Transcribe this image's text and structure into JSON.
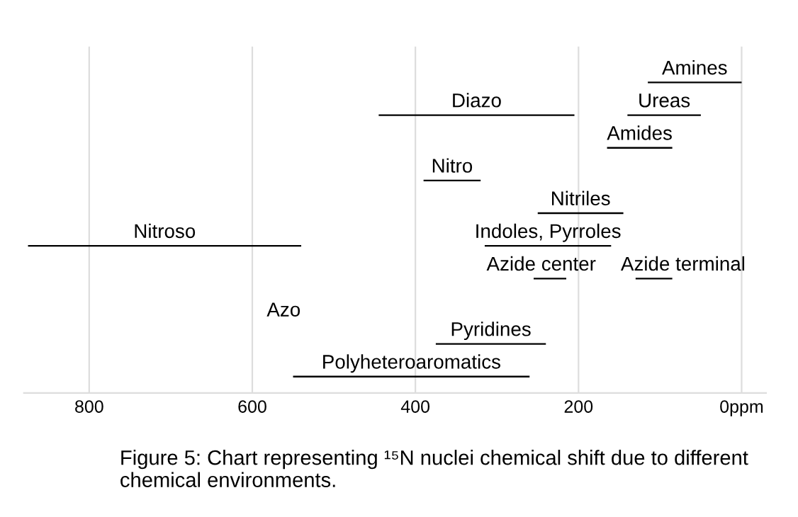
{
  "chart_data": {
    "type": "bar",
    "orientation": "horizontal",
    "categories": [
      null,
      null,
      null,
      null,
      null,
      null,
      null,
      null,
      null,
      null
    ],
    "series": [
      {
        "name": "Amines",
        "color": "#000000",
        "base": [
          0,
          null,
          null,
          null,
          null,
          null,
          null,
          null,
          null,
          null
        ],
        "values": [
          115,
          null,
          null,
          null,
          null,
          null,
          null,
          null,
          null,
          null
        ]
      },
      {
        "name": "Diazo",
        "color": "#000000",
        "base": [
          null,
          205,
          null,
          null,
          null,
          null,
          null,
          null,
          null,
          null
        ],
        "values": [
          null,
          240,
          null,
          null,
          null,
          null,
          null,
          null,
          null,
          null
        ]
      },
      {
        "name": "Ureas",
        "color": "#000000",
        "base": [
          null,
          50,
          null,
          null,
          null,
          null,
          null,
          null,
          null,
          null
        ],
        "values": [
          null,
          90,
          null,
          null,
          null,
          null,
          null,
          null,
          null,
          null
        ]
      },
      {
        "name": "Amides",
        "color": "#000000",
        "base": [
          null,
          null,
          85,
          null,
          null,
          null,
          null,
          null,
          null,
          null
        ],
        "values": [
          null,
          null,
          80,
          null,
          null,
          null,
          null,
          null,
          null,
          null
        ]
      },
      {
        "name": "Nitro",
        "color": "#000000",
        "base": [
          null,
          null,
          null,
          320,
          null,
          null,
          null,
          null,
          null,
          null
        ],
        "values": [
          null,
          null,
          null,
          70,
          null,
          null,
          null,
          null,
          null,
          null
        ]
      },
      {
        "name": "Nitriles",
        "color": "#000000",
        "base": [
          null,
          null,
          null,
          null,
          145,
          null,
          null,
          null,
          null,
          null
        ],
        "values": [
          null,
          null,
          null,
          null,
          105,
          null,
          null,
          null,
          null,
          null
        ]
      },
      {
        "name": "Nitroso",
        "color": "#000000",
        "base": [
          null,
          null,
          null,
          null,
          null,
          540,
          null,
          null,
          null,
          null
        ],
        "values": [
          null,
          null,
          null,
          null,
          null,
          335,
          null,
          null,
          null,
          null
        ]
      },
      {
        "name": "Indoles, Pyrroles",
        "color": "#000000",
        "base": [
          null,
          null,
          null,
          null,
          null,
          160,
          null,
          null,
          null,
          null
        ],
        "values": [
          null,
          null,
          null,
          null,
          null,
          155,
          null,
          null,
          null,
          null
        ]
      },
      {
        "name": "Azide center",
        "color": "#000000",
        "base": [
          null,
          null,
          null,
          null,
          null,
          null,
          215,
          null,
          null,
          null
        ],
        "values": [
          null,
          null,
          null,
          null,
          null,
          null,
          40,
          null,
          null,
          null
        ]
      },
      {
        "name": "Azide terminal",
        "color": "#000000",
        "base": [
          null,
          null,
          null,
          null,
          null,
          null,
          85,
          null,
          null,
          null
        ],
        "values": [
          null,
          null,
          null,
          null,
          null,
          null,
          45,
          null,
          null,
          null
        ]
      },
      {
        "name": "Pyridines",
        "color": "#000000",
        "base": [
          null,
          null,
          null,
          null,
          null,
          null,
          null,
          null,
          240,
          null
        ],
        "values": [
          null,
          null,
          null,
          null,
          null,
          null,
          null,
          null,
          135,
          null
        ]
      },
      {
        "name": "Polyheteroaromatics",
        "color": "#000000",
        "base": [
          null,
          null,
          null,
          null,
          null,
          null,
          null,
          null,
          null,
          260
        ],
        "values": [
          null,
          null,
          null,
          null,
          null,
          null,
          null,
          null,
          null,
          290
        ]
      }
    ],
    "xlim": [
      880,
      -30
    ],
    "xticks": [
      800,
      600,
      400,
      200,
      {
        "value": 0,
        "label": "0ppm"
      }
    ],
    "grid": "x",
    "legend": false,
    "annotations": [
      "Azo",
      "Figure 5: Chart representing ¹⁵N nuclei chemical shift due to different chemical environments."
    ]
  }
}
